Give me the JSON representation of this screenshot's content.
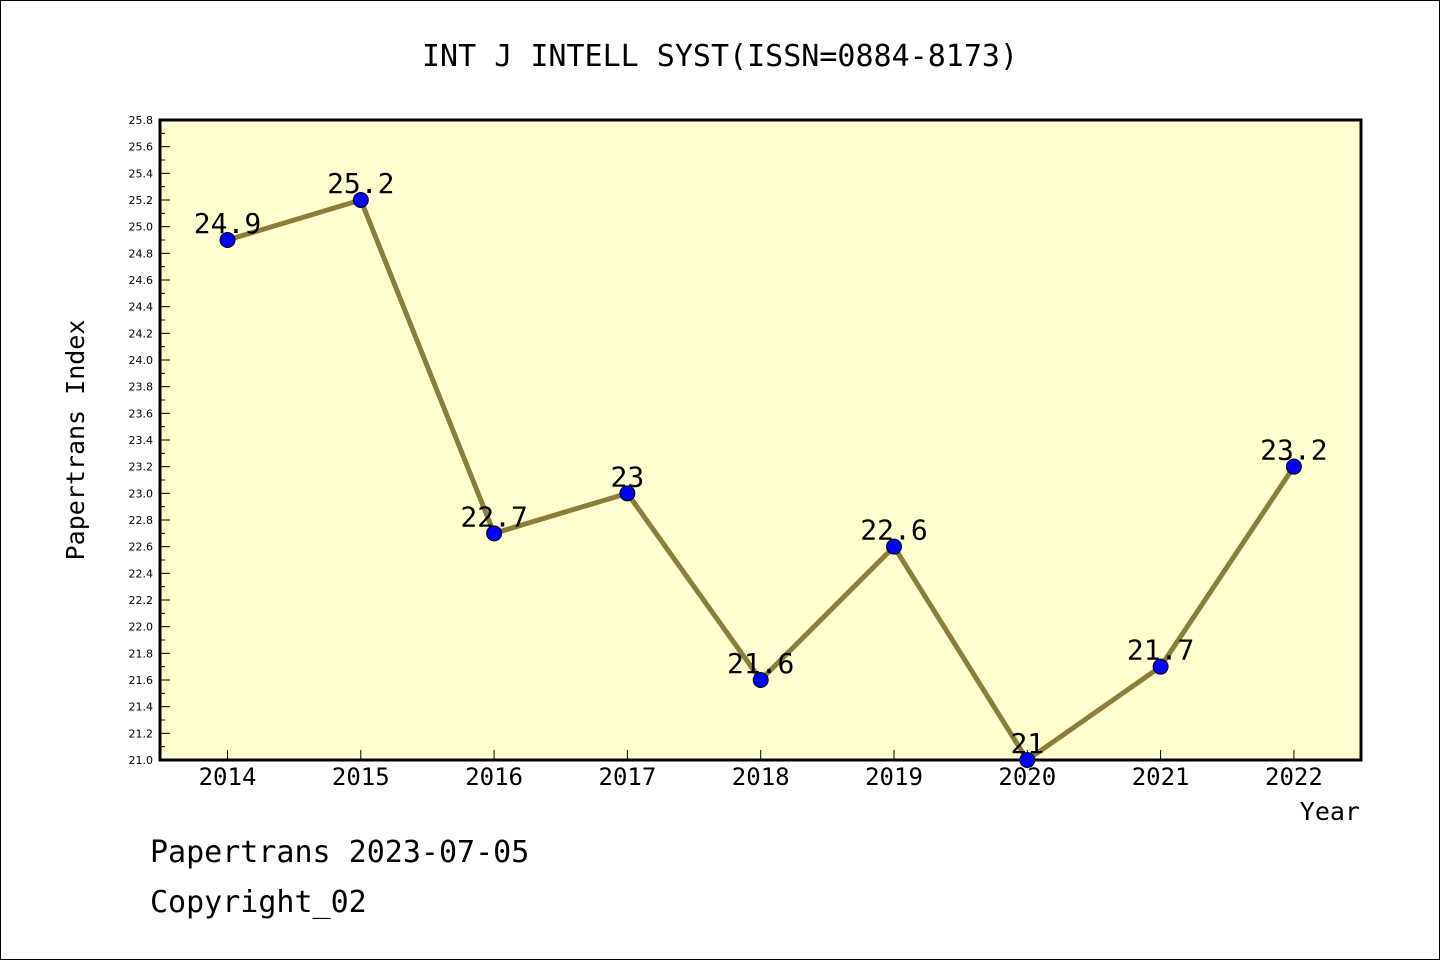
{
  "chart_data": {
    "type": "line",
    "title": "INT J INTELL SYST(ISSN=0884-8173)",
    "xlabel": "Year",
    "ylabel": "Papertrans Index",
    "categories": [
      "2014",
      "2015",
      "2016",
      "2017",
      "2018",
      "2019",
      "2020",
      "2021",
      "2022"
    ],
    "series": [
      {
        "values": [
          24.9,
          25.2,
          22.7,
          23.0,
          21.6,
          22.6,
          21.0,
          21.7,
          23.2
        ],
        "labels": [
          "24.9",
          "25.2",
          "22.7",
          "23",
          "21.6",
          "22.6",
          "21",
          "21.7",
          "23.2"
        ]
      }
    ],
    "ylim": [
      21.0,
      25.8
    ],
    "yticks": [
      "21.0",
      "21.2",
      "21.4",
      "21.6",
      "21.8",
      "22.0",
      "22.2",
      "22.4",
      "22.6",
      "22.8",
      "23.0",
      "23.2",
      "23.4",
      "23.6",
      "23.8",
      "24.0",
      "24.2",
      "24.4",
      "24.6",
      "24.8",
      "25.0",
      "25.2",
      "25.4",
      "25.6",
      "25.8"
    ],
    "grid": false,
    "colors": {
      "plot_bg": "#ffffd0",
      "line": "#8b7d3a",
      "marker": "#0000ff"
    }
  },
  "footer": {
    "date_line": "Papertrans 2023-07-05",
    "copyright": "Copyright_02"
  }
}
